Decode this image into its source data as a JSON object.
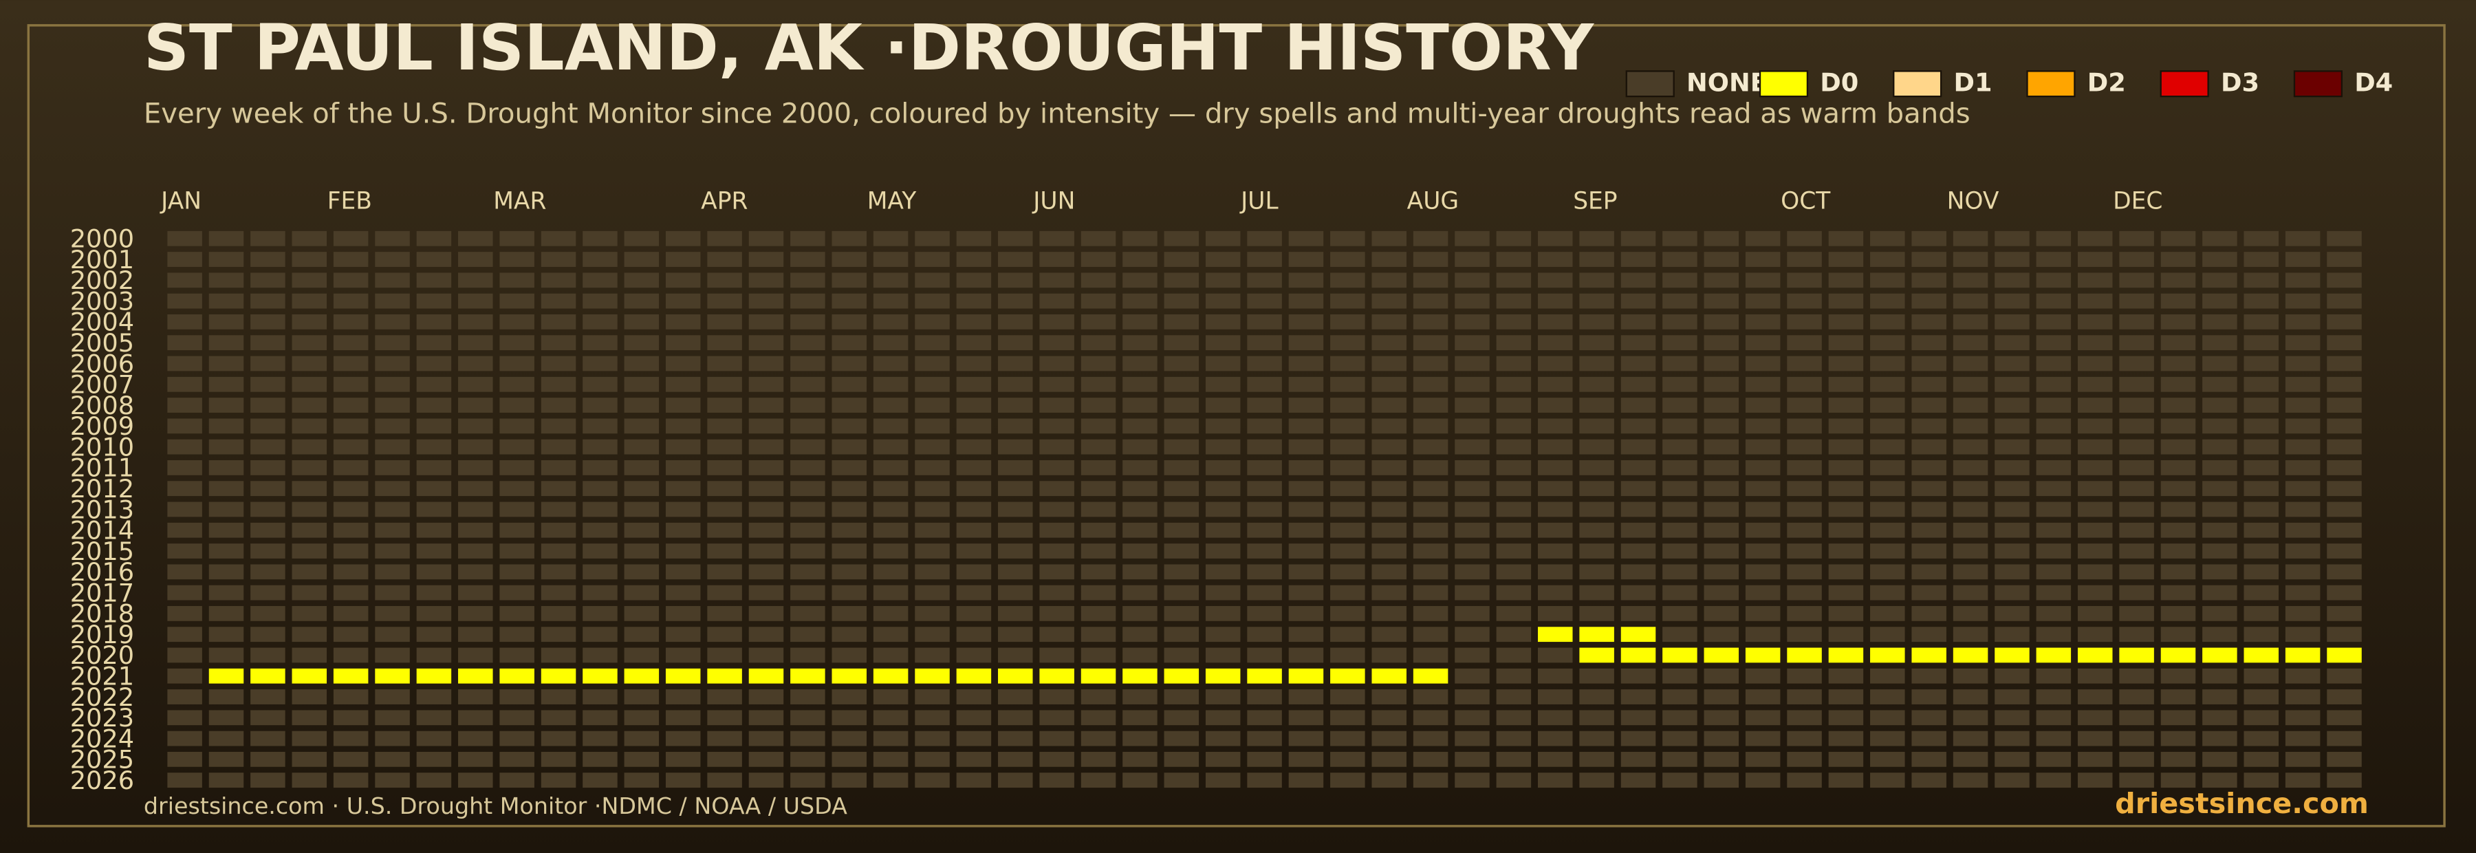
{
  "chart_data": {
    "type": "heatmap",
    "title": "ST PAUL ISLAND, AK ·DROUGHT HISTORY",
    "subtitle": "Every week of the U.S. Drought Monitor since 2000, coloured by intensity — dry spells and multi-year droughts read as warm bands",
    "source": "driestsince.com  · U.S. Drought Monitor ·NDMC / NOAA / USDA",
    "brand": "driestsince.com",
    "levels": [
      {
        "name": "NONE",
        "color": "#4a3d28"
      },
      {
        "name": "D0",
        "color": "#ffff00"
      },
      {
        "name": "D1",
        "color": "#ffd68a"
      },
      {
        "name": "D2",
        "color": "#ffa500"
      },
      {
        "name": "D3",
        "color": "#e00000"
      },
      {
        "name": "D4",
        "color": "#6b0000"
      }
    ],
    "x": [
      "JAN",
      null,
      null,
      null,
      "FEB",
      null,
      null,
      null,
      "MAR",
      null,
      null,
      null,
      null,
      "APR",
      null,
      null,
      null,
      "MAY",
      null,
      null,
      null,
      "JUN",
      null,
      null,
      null,
      null,
      "JUL",
      null,
      null,
      null,
      "AUG",
      null,
      null,
      null,
      "SEP",
      null,
      null,
      null,
      null,
      "OCT",
      null,
      null,
      null,
      "NOV",
      null,
      null,
      null,
      "DEC",
      null,
      null,
      null,
      null,
      null
    ],
    "y": [
      2000,
      2001,
      2002,
      2003,
      2004,
      2005,
      2006,
      2007,
      2008,
      2009,
      2010,
      2011,
      2012,
      2013,
      2014,
      2015,
      2016,
      2017,
      2018,
      2019,
      2020,
      2021,
      2022,
      2023,
      2024,
      2025,
      2026
    ],
    "values": [
      [
        0,
        0,
        0,
        0,
        0,
        0,
        0,
        0,
        0,
        0,
        0,
        0,
        0,
        0,
        0,
        0,
        0,
        0,
        0,
        0,
        0,
        0,
        0,
        0,
        0,
        0,
        0,
        0,
        0,
        0,
        0,
        0,
        0,
        0,
        0,
        0,
        0,
        0,
        0,
        0,
        0,
        0,
        0,
        0,
        0,
        0,
        0,
        0,
        0,
        0,
        0,
        0,
        0
      ],
      [
        0,
        0,
        0,
        0,
        0,
        0,
        0,
        0,
        0,
        0,
        0,
        0,
        0,
        0,
        0,
        0,
        0,
        0,
        0,
        0,
        0,
        0,
        0,
        0,
        0,
        0,
        0,
        0,
        0,
        0,
        0,
        0,
        0,
        0,
        0,
        0,
        0,
        0,
        0,
        0,
        0,
        0,
        0,
        0,
        0,
        0,
        0,
        0,
        0,
        0,
        0,
        0,
        0
      ],
      [
        0,
        0,
        0,
        0,
        0,
        0,
        0,
        0,
        0,
        0,
        0,
        0,
        0,
        0,
        0,
        0,
        0,
        0,
        0,
        0,
        0,
        0,
        0,
        0,
        0,
        0,
        0,
        0,
        0,
        0,
        0,
        0,
        0,
        0,
        0,
        0,
        0,
        0,
        0,
        0,
        0,
        0,
        0,
        0,
        0,
        0,
        0,
        0,
        0,
        0,
        0,
        0,
        0
      ],
      [
        0,
        0,
        0,
        0,
        0,
        0,
        0,
        0,
        0,
        0,
        0,
        0,
        0,
        0,
        0,
        0,
        0,
        0,
        0,
        0,
        0,
        0,
        0,
        0,
        0,
        0,
        0,
        0,
        0,
        0,
        0,
        0,
        0,
        0,
        0,
        0,
        0,
        0,
        0,
        0,
        0,
        0,
        0,
        0,
        0,
        0,
        0,
        0,
        0,
        0,
        0,
        0,
        0
      ],
      [
        0,
        0,
        0,
        0,
        0,
        0,
        0,
        0,
        0,
        0,
        0,
        0,
        0,
        0,
        0,
        0,
        0,
        0,
        0,
        0,
        0,
        0,
        0,
        0,
        0,
        0,
        0,
        0,
        0,
        0,
        0,
        0,
        0,
        0,
        0,
        0,
        0,
        0,
        0,
        0,
        0,
        0,
        0,
        0,
        0,
        0,
        0,
        0,
        0,
        0,
        0,
        0,
        0
      ],
      [
        0,
        0,
        0,
        0,
        0,
        0,
        0,
        0,
        0,
        0,
        0,
        0,
        0,
        0,
        0,
        0,
        0,
        0,
        0,
        0,
        0,
        0,
        0,
        0,
        0,
        0,
        0,
        0,
        0,
        0,
        0,
        0,
        0,
        0,
        0,
        0,
        0,
        0,
        0,
        0,
        0,
        0,
        0,
        0,
        0,
        0,
        0,
        0,
        0,
        0,
        0,
        0,
        0
      ],
      [
        0,
        0,
        0,
        0,
        0,
        0,
        0,
        0,
        0,
        0,
        0,
        0,
        0,
        0,
        0,
        0,
        0,
        0,
        0,
        0,
        0,
        0,
        0,
        0,
        0,
        0,
        0,
        0,
        0,
        0,
        0,
        0,
        0,
        0,
        0,
        0,
        0,
        0,
        0,
        0,
        0,
        0,
        0,
        0,
        0,
        0,
        0,
        0,
        0,
        0,
        0,
        0,
        0
      ],
      [
        0,
        0,
        0,
        0,
        0,
        0,
        0,
        0,
        0,
        0,
        0,
        0,
        0,
        0,
        0,
        0,
        0,
        0,
        0,
        0,
        0,
        0,
        0,
        0,
        0,
        0,
        0,
        0,
        0,
        0,
        0,
        0,
        0,
        0,
        0,
        0,
        0,
        0,
        0,
        0,
        0,
        0,
        0,
        0,
        0,
        0,
        0,
        0,
        0,
        0,
        0,
        0,
        0
      ],
      [
        0,
        0,
        0,
        0,
        0,
        0,
        0,
        0,
        0,
        0,
        0,
        0,
        0,
        0,
        0,
        0,
        0,
        0,
        0,
        0,
        0,
        0,
        0,
        0,
        0,
        0,
        0,
        0,
        0,
        0,
        0,
        0,
        0,
        0,
        0,
        0,
        0,
        0,
        0,
        0,
        0,
        0,
        0,
        0,
        0,
        0,
        0,
        0,
        0,
        0,
        0,
        0,
        0
      ],
      [
        0,
        0,
        0,
        0,
        0,
        0,
        0,
        0,
        0,
        0,
        0,
        0,
        0,
        0,
        0,
        0,
        0,
        0,
        0,
        0,
        0,
        0,
        0,
        0,
        0,
        0,
        0,
        0,
        0,
        0,
        0,
        0,
        0,
        0,
        0,
        0,
        0,
        0,
        0,
        0,
        0,
        0,
        0,
        0,
        0,
        0,
        0,
        0,
        0,
        0,
        0,
        0,
        0
      ],
      [
        0,
        0,
        0,
        0,
        0,
        0,
        0,
        0,
        0,
        0,
        0,
        0,
        0,
        0,
        0,
        0,
        0,
        0,
        0,
        0,
        0,
        0,
        0,
        0,
        0,
        0,
        0,
        0,
        0,
        0,
        0,
        0,
        0,
        0,
        0,
        0,
        0,
        0,
        0,
        0,
        0,
        0,
        0,
        0,
        0,
        0,
        0,
        0,
        0,
        0,
        0,
        0,
        0
      ],
      [
        0,
        0,
        0,
        0,
        0,
        0,
        0,
        0,
        0,
        0,
        0,
        0,
        0,
        0,
        0,
        0,
        0,
        0,
        0,
        0,
        0,
        0,
        0,
        0,
        0,
        0,
        0,
        0,
        0,
        0,
        0,
        0,
        0,
        0,
        0,
        0,
        0,
        0,
        0,
        0,
        0,
        0,
        0,
        0,
        0,
        0,
        0,
        0,
        0,
        0,
        0,
        0,
        0
      ],
      [
        0,
        0,
        0,
        0,
        0,
        0,
        0,
        0,
        0,
        0,
        0,
        0,
        0,
        0,
        0,
        0,
        0,
        0,
        0,
        0,
        0,
        0,
        0,
        0,
        0,
        0,
        0,
        0,
        0,
        0,
        0,
        0,
        0,
        0,
        0,
        0,
        0,
        0,
        0,
        0,
        0,
        0,
        0,
        0,
        0,
        0,
        0,
        0,
        0,
        0,
        0,
        0,
        0
      ],
      [
        0,
        0,
        0,
        0,
        0,
        0,
        0,
        0,
        0,
        0,
        0,
        0,
        0,
        0,
        0,
        0,
        0,
        0,
        0,
        0,
        0,
        0,
        0,
        0,
        0,
        0,
        0,
        0,
        0,
        0,
        0,
        0,
        0,
        0,
        0,
        0,
        0,
        0,
        0,
        0,
        0,
        0,
        0,
        0,
        0,
        0,
        0,
        0,
        0,
        0,
        0,
        0,
        0
      ],
      [
        0,
        0,
        0,
        0,
        0,
        0,
        0,
        0,
        0,
        0,
        0,
        0,
        0,
        0,
        0,
        0,
        0,
        0,
        0,
        0,
        0,
        0,
        0,
        0,
        0,
        0,
        0,
        0,
        0,
        0,
        0,
        0,
        0,
        0,
        0,
        0,
        0,
        0,
        0,
        0,
        0,
        0,
        0,
        0,
        0,
        0,
        0,
        0,
        0,
        0,
        0,
        0,
        0
      ],
      [
        0,
        0,
        0,
        0,
        0,
        0,
        0,
        0,
        0,
        0,
        0,
        0,
        0,
        0,
        0,
        0,
        0,
        0,
        0,
        0,
        0,
        0,
        0,
        0,
        0,
        0,
        0,
        0,
        0,
        0,
        0,
        0,
        0,
        0,
        0,
        0,
        0,
        0,
        0,
        0,
        0,
        0,
        0,
        0,
        0,
        0,
        0,
        0,
        0,
        0,
        0,
        0,
        0
      ],
      [
        0,
        0,
        0,
        0,
        0,
        0,
        0,
        0,
        0,
        0,
        0,
        0,
        0,
        0,
        0,
        0,
        0,
        0,
        0,
        0,
        0,
        0,
        0,
        0,
        0,
        0,
        0,
        0,
        0,
        0,
        0,
        0,
        0,
        0,
        0,
        0,
        0,
        0,
        0,
        0,
        0,
        0,
        0,
        0,
        0,
        0,
        0,
        0,
        0,
        0,
        0,
        0,
        0
      ],
      [
        0,
        0,
        0,
        0,
        0,
        0,
        0,
        0,
        0,
        0,
        0,
        0,
        0,
        0,
        0,
        0,
        0,
        0,
        0,
        0,
        0,
        0,
        0,
        0,
        0,
        0,
        0,
        0,
        0,
        0,
        0,
        0,
        0,
        0,
        0,
        0,
        0,
        0,
        0,
        0,
        0,
        0,
        0,
        0,
        0,
        0,
        0,
        0,
        0,
        0,
        0,
        0,
        0
      ],
      [
        0,
        0,
        0,
        0,
        0,
        0,
        0,
        0,
        0,
        0,
        0,
        0,
        0,
        0,
        0,
        0,
        0,
        0,
        0,
        0,
        0,
        0,
        0,
        0,
        0,
        0,
        0,
        0,
        0,
        0,
        0,
        0,
        0,
        0,
        0,
        0,
        0,
        0,
        0,
        0,
        0,
        0,
        0,
        0,
        0,
        0,
        0,
        0,
        0,
        0,
        0,
        0,
        0
      ],
      [
        0,
        0,
        0,
        0,
        0,
        0,
        0,
        0,
        0,
        0,
        0,
        0,
        0,
        0,
        0,
        0,
        0,
        0,
        0,
        0,
        0,
        0,
        0,
        0,
        0,
        0,
        0,
        0,
        0,
        0,
        0,
        0,
        0,
        1,
        1,
        1,
        0,
        0,
        0,
        0,
        0,
        0,
        0,
        0,
        0,
        0,
        0,
        0,
        0,
        0,
        0,
        0,
        0
      ],
      [
        0,
        0,
        0,
        0,
        0,
        0,
        0,
        0,
        0,
        0,
        0,
        0,
        0,
        0,
        0,
        0,
        0,
        0,
        0,
        0,
        0,
        0,
        0,
        0,
        0,
        0,
        0,
        0,
        0,
        0,
        0,
        0,
        0,
        0,
        1,
        1,
        1,
        1,
        1,
        1,
        1,
        1,
        1,
        1,
        1,
        1,
        1,
        1,
        1,
        1,
        1,
        1,
        1
      ],
      [
        0,
        1,
        1,
        1,
        1,
        1,
        1,
        1,
        1,
        1,
        1,
        1,
        1,
        1,
        1,
        1,
        1,
        1,
        1,
        1,
        1,
        1,
        1,
        1,
        1,
        1,
        1,
        1,
        1,
        1,
        1,
        0,
        0,
        0,
        0,
        0,
        0,
        0,
        0,
        0,
        0,
        0,
        0,
        0,
        0,
        0,
        0,
        0,
        0,
        0,
        0,
        0,
        0
      ],
      [
        0,
        0,
        0,
        0,
        0,
        0,
        0,
        0,
        0,
        0,
        0,
        0,
        0,
        0,
        0,
        0,
        0,
        0,
        0,
        0,
        0,
        0,
        0,
        0,
        0,
        0,
        0,
        0,
        0,
        0,
        0,
        0,
        0,
        0,
        0,
        0,
        0,
        0,
        0,
        0,
        0,
        0,
        0,
        0,
        0,
        0,
        0,
        0,
        0,
        0,
        0,
        0,
        0
      ],
      [
        0,
        0,
        0,
        0,
        0,
        0,
        0,
        0,
        0,
        0,
        0,
        0,
        0,
        0,
        0,
        0,
        0,
        0,
        0,
        0,
        0,
        0,
        0,
        0,
        0,
        0,
        0,
        0,
        0,
        0,
        0,
        0,
        0,
        0,
        0,
        0,
        0,
        0,
        0,
        0,
        0,
        0,
        0,
        0,
        0,
        0,
        0,
        0,
        0,
        0,
        0,
        0,
        0
      ],
      [
        0,
        0,
        0,
        0,
        0,
        0,
        0,
        0,
        0,
        0,
        0,
        0,
        0,
        0,
        0,
        0,
        0,
        0,
        0,
        0,
        0,
        0,
        0,
        0,
        0,
        0,
        0,
        0,
        0,
        0,
        0,
        0,
        0,
        0,
        0,
        0,
        0,
        0,
        0,
        0,
        0,
        0,
        0,
        0,
        0,
        0,
        0,
        0,
        0,
        0,
        0,
        0,
        0
      ],
      [
        0,
        0,
        0,
        0,
        0,
        0,
        0,
        0,
        0,
        0,
        0,
        0,
        0,
        0,
        0,
        0,
        0,
        0,
        0,
        0,
        0,
        0,
        0,
        0,
        0,
        0,
        0,
        0,
        0,
        0,
        0,
        0,
        0,
        0,
        0,
        0,
        0,
        0,
        0,
        0,
        0,
        0,
        0,
        0,
        0,
        0,
        0,
        0,
        0,
        0,
        0,
        0,
        0
      ],
      [
        0,
        0,
        0,
        0,
        0,
        0,
        0,
        0,
        0,
        0,
        0,
        0,
        0,
        0,
        0,
        0,
        0,
        0,
        0,
        0,
        0,
        0,
        0,
        0,
        0,
        0,
        0,
        0,
        0,
        0,
        0,
        0,
        0,
        0,
        0,
        0,
        0,
        0,
        0,
        0,
        0,
        0,
        0,
        0,
        0,
        0,
        0,
        0,
        0,
        0,
        0,
        0,
        0
      ]
    ]
  }
}
